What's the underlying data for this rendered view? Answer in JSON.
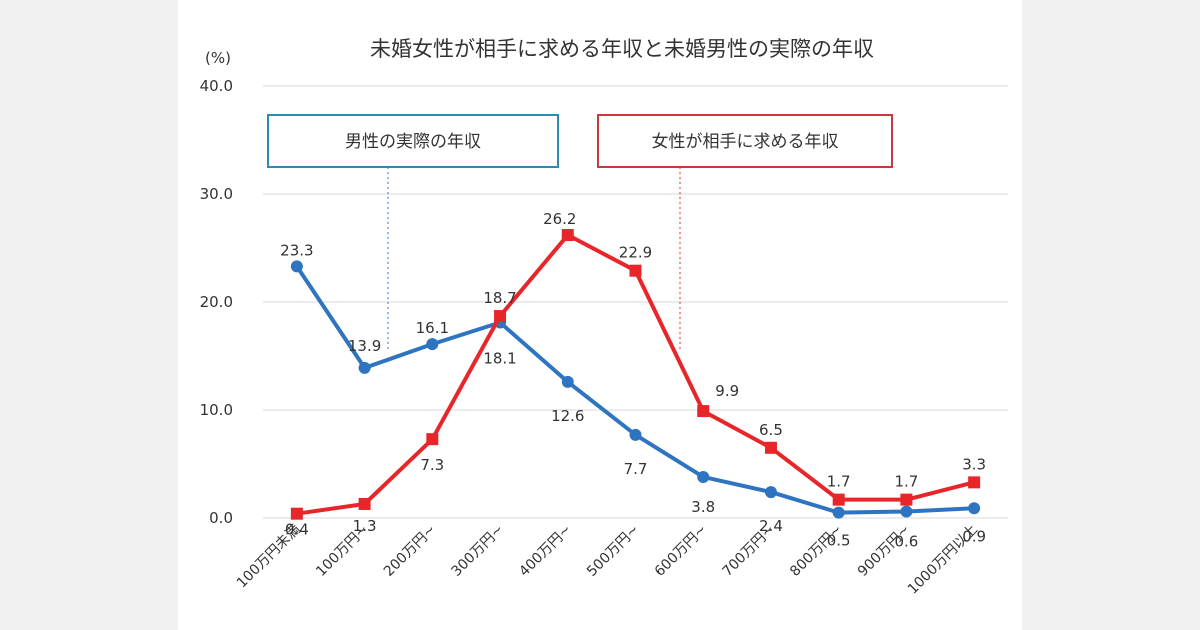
{
  "colors": {
    "male": "#2e74c0",
    "female": "#e8262a",
    "grid": "#d9d9d9",
    "background": "#f1f1f1"
  },
  "chart_data": {
    "type": "line",
    "title": "未婚女性が相手に求める年収と未婚男性の実際の年収",
    "unit_label": "(%)",
    "ylim": [
      0,
      40
    ],
    "yticks": [
      "0.0",
      "10.0",
      "20.0",
      "30.0",
      "40.0"
    ],
    "grid": true,
    "categories": [
      "100万円未満",
      "100万円~",
      "200万円~",
      "300万円~",
      "400万円~",
      "500万円~",
      "600万円~",
      "700万円~",
      "800万円~",
      "900万円~",
      "1000万円以上"
    ],
    "series": [
      {
        "name": "男性の実際の年収",
        "color": "#2e74c0",
        "marker": "circle",
        "values": [
          23.3,
          13.9,
          16.1,
          18.1,
          12.6,
          7.7,
          3.8,
          2.4,
          0.5,
          0.6,
          0.9
        ],
        "labels": [
          "23.3",
          "13.9",
          "16.1",
          "18.1",
          "12.6",
          "7.7",
          "3.8",
          "2.4",
          "0.5",
          "0.6",
          "0.9"
        ]
      },
      {
        "name": "女性が相手に求める年収",
        "color": "#e8262a",
        "marker": "square",
        "values": [
          0.4,
          1.3,
          7.3,
          18.7,
          26.2,
          22.9,
          9.9,
          6.5,
          1.7,
          1.7,
          3.3
        ],
        "labels": [
          "0.4",
          "1.3",
          "7.3",
          "18.7",
          "26.2",
          "22.9",
          "9.9",
          "6.5",
          "1.7",
          "1.7",
          "3.3"
        ]
      }
    ]
  }
}
